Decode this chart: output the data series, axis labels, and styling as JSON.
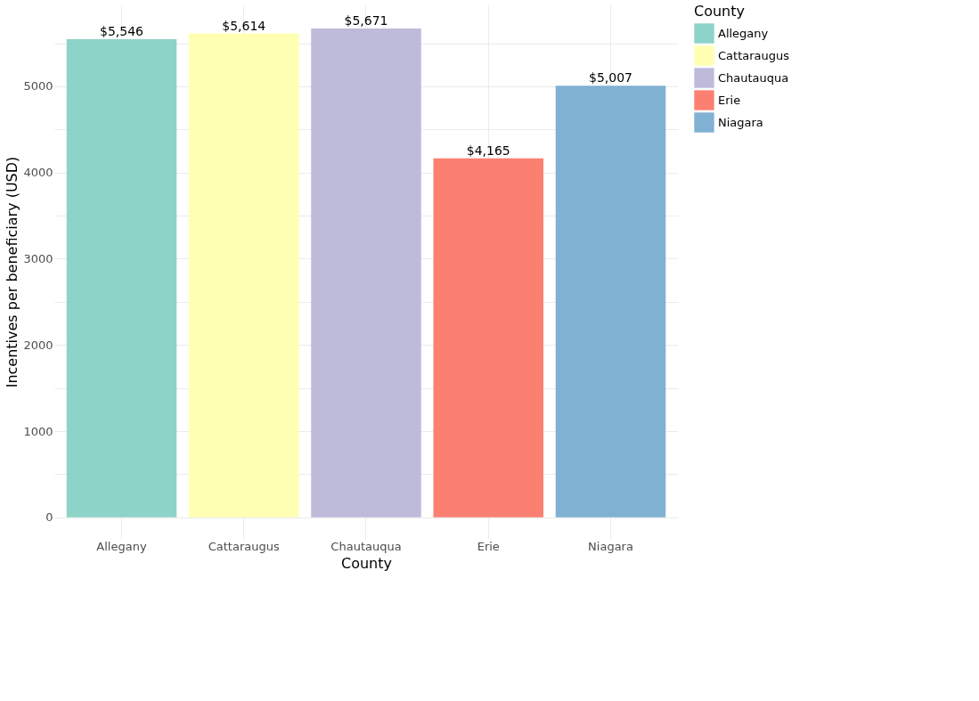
{
  "chart_data": {
    "type": "bar",
    "xlabel": "County",
    "ylabel": "Incentives per beneficiary (USD)",
    "legend_title": "County",
    "categories": [
      "Allegany",
      "Cattaraugus",
      "Chautauqua",
      "Erie",
      "Niagara"
    ],
    "series": [
      {
        "name": "Allegany",
        "color": "#8dd3c7",
        "values": [
          5546,
          null,
          null,
          null,
          null
        ],
        "value_labels": [
          "$5,546",
          null,
          null,
          null,
          null
        ]
      },
      {
        "name": "Cattaraugus",
        "color": "#ffffb3",
        "values": [
          null,
          5614,
          null,
          null,
          null
        ],
        "value_labels": [
          null,
          "$5,614",
          null,
          null,
          null
        ]
      },
      {
        "name": "Chautauqua",
        "color": "#bebada",
        "values": [
          null,
          null,
          5671,
          null,
          null
        ],
        "value_labels": [
          null,
          null,
          "$5,671",
          null,
          null
        ]
      },
      {
        "name": "Erie",
        "color": "#fb8072",
        "values": [
          null,
          null,
          null,
          4165,
          null
        ],
        "value_labels": [
          null,
          null,
          null,
          "$4,165",
          null
        ]
      },
      {
        "name": "Niagara",
        "color": "#80b1d3",
        "values": [
          null,
          null,
          null,
          null,
          5007
        ],
        "value_labels": [
          null,
          null,
          null,
          null,
          "$5,007"
        ]
      }
    ],
    "ylim": [
      -250,
      5950
    ],
    "yticks": [
      0,
      {
        "value": 500,
        "label": null
      },
      1000,
      {
        "value": 1500,
        "label": null
      },
      2000,
      {
        "value": 2500,
        "label": null
      },
      3000,
      {
        "value": 3500,
        "label": null
      },
      4000,
      {
        "value": 4500,
        "label": null
      },
      5000,
      {
        "value": 5500,
        "label": null
      }
    ],
    "grid": true,
    "legend": "right"
  }
}
